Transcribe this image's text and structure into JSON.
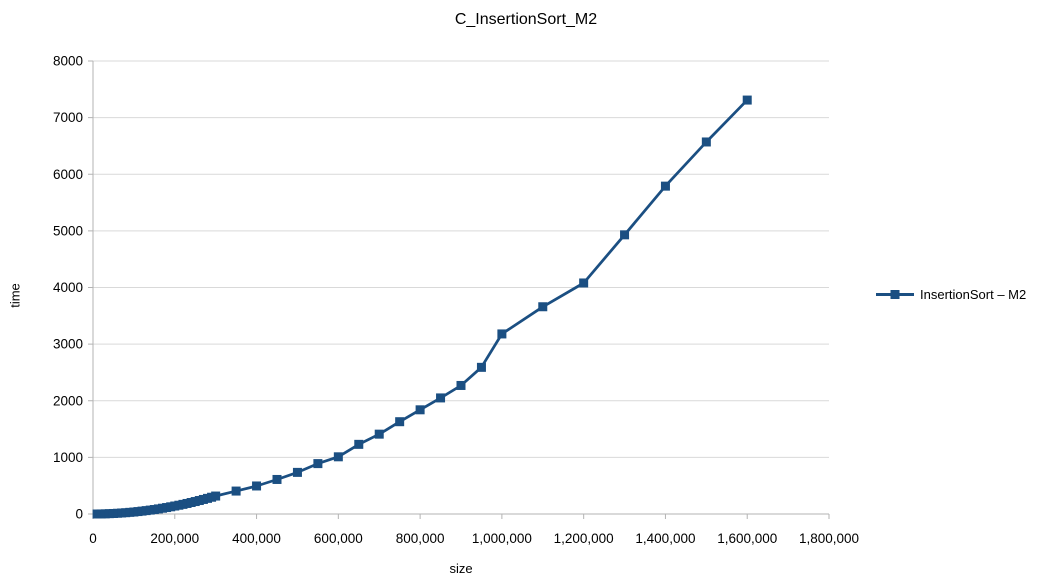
{
  "chart_data": {
    "type": "line",
    "title": "C_InsertionSort_M2",
    "xlabel": "size",
    "ylabel": "time",
    "xlim": [
      0,
      1800000
    ],
    "ylim": [
      0,
      8000
    ],
    "grid": "horizontal",
    "legend_position": "right",
    "marker": "square",
    "colors": {
      "series": "#1b4f82",
      "gridline": "#d9d9d9",
      "axis": "#b3b3b3",
      "text": "#000000",
      "background": "#ffffff"
    },
    "x_ticks": [
      {
        "v": 0,
        "label": "0"
      },
      {
        "v": 200000,
        "label": "200,000"
      },
      {
        "v": 400000,
        "label": "400,000"
      },
      {
        "v": 600000,
        "label": "600,000"
      },
      {
        "v": 800000,
        "label": "800,000"
      },
      {
        "v": 1000000,
        "label": "1,000,000"
      },
      {
        "v": 1200000,
        "label": "1,200,000"
      },
      {
        "v": 1400000,
        "label": "1,400,000"
      },
      {
        "v": 1600000,
        "label": "1,600,000"
      },
      {
        "v": 1800000,
        "label": "1,800,000"
      }
    ],
    "y_ticks": [
      {
        "v": 0,
        "label": "0"
      },
      {
        "v": 1000,
        "label": "1000"
      },
      {
        "v": 2000,
        "label": "2000"
      },
      {
        "v": 3000,
        "label": "3000"
      },
      {
        "v": 4000,
        "label": "4000"
      },
      {
        "v": 5000,
        "label": "5000"
      },
      {
        "v": 6000,
        "label": "6000"
      },
      {
        "v": 7000,
        "label": "7000"
      },
      {
        "v": 8000,
        "label": "8000"
      }
    ],
    "series": [
      {
        "name": "InsertionSort – M2",
        "color": "#1b4f82",
        "points": [
          [
            10000,
            0
          ],
          [
            20000,
            1
          ],
          [
            30000,
            3
          ],
          [
            40000,
            6
          ],
          [
            50000,
            9
          ],
          [
            60000,
            13
          ],
          [
            70000,
            18
          ],
          [
            80000,
            23
          ],
          [
            90000,
            29
          ],
          [
            100000,
            35
          ],
          [
            110000,
            43
          ],
          [
            120000,
            51
          ],
          [
            130000,
            60
          ],
          [
            140000,
            69
          ],
          [
            150000,
            79
          ],
          [
            160000,
            90
          ],
          [
            170000,
            102
          ],
          [
            180000,
            114
          ],
          [
            190000,
            127
          ],
          [
            200000,
            141
          ],
          [
            210000,
            155
          ],
          [
            220000,
            170
          ],
          [
            230000,
            186
          ],
          [
            240000,
            203
          ],
          [
            250000,
            220
          ],
          [
            260000,
            238
          ],
          [
            270000,
            257
          ],
          [
            280000,
            276
          ],
          [
            290000,
            296
          ],
          [
            300000,
            317
          ],
          [
            350000,
            405
          ],
          [
            400000,
            495
          ],
          [
            450000,
            610
          ],
          [
            500000,
            735
          ],
          [
            550000,
            890
          ],
          [
            600000,
            1010
          ],
          [
            650000,
            1230
          ],
          [
            700000,
            1410
          ],
          [
            750000,
            1630
          ],
          [
            800000,
            1840
          ],
          [
            850000,
            2050
          ],
          [
            900000,
            2270
          ],
          [
            950000,
            2590
          ],
          [
            1000000,
            3180
          ],
          [
            1100000,
            3660
          ],
          [
            1200000,
            4080
          ],
          [
            1300000,
            4930
          ],
          [
            1400000,
            5790
          ],
          [
            1500000,
            6570
          ],
          [
            1600000,
            7310
          ]
        ]
      }
    ]
  },
  "legend": {
    "label": "InsertionSort – M2"
  }
}
